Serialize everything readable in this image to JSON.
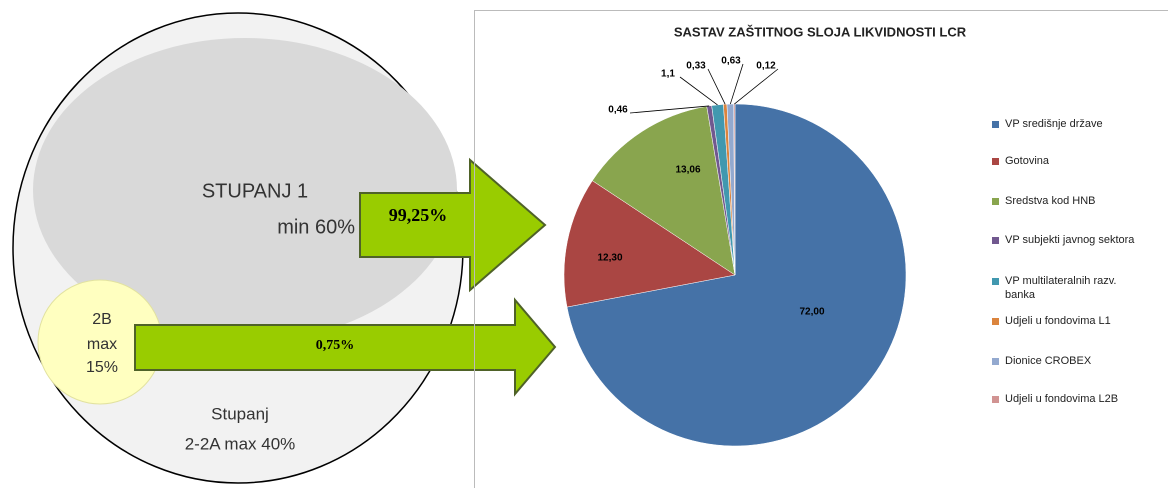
{
  "diagram": {
    "level1": "STUPANJ 1",
    "level1_min": "min 60%",
    "level2b": "2B",
    "level2b_max": "max",
    "level2b_pct": "15%",
    "level2": "Stupanj",
    "level2_max": "2-2A max 40%",
    "arrow1": "99,25%",
    "arrow2": "0,75%"
  },
  "chart_data": {
    "type": "pie",
    "title": "SASTAV ZAŠTITNOG SLOJA LIKVIDNOSTI LCR",
    "categories": [
      "VP središnje države",
      "Gotovina",
      "Sredstva kod HNB",
      "VP subjekti javnog sektora",
      "VP multilateralnih razv. banka",
      "Udjeli u fondovima L1",
      "Dionice CROBEX",
      "Udjeli u fondovima L2B"
    ],
    "values": [
      72.0,
      12.3,
      13.06,
      0.46,
      1.1,
      0.33,
      0.63,
      0.12
    ],
    "value_labels": [
      "72,00",
      "12,30",
      "13,06",
      "0,46",
      "1,1",
      "0,33",
      "0,63",
      "0,12"
    ],
    "colors": [
      "#4572a7",
      "#aa4643",
      "#89a54e",
      "#71588f",
      "#4198af",
      "#db843d",
      "#93a9cf",
      "#d19392"
    ],
    "legend": "right"
  }
}
